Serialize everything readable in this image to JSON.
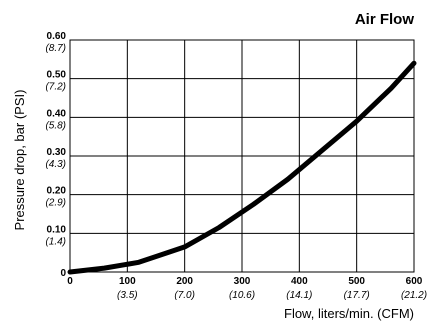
{
  "chart_data": {
    "type": "line",
    "title": "Air Flow",
    "xlabel": "Flow, liters/min. (CFM)",
    "ylabel": "Pressure drop, bar (PSI)",
    "xlim": [
      0,
      600
    ],
    "ylim": [
      0,
      0.6
    ],
    "grid": true,
    "x_ticks": [
      {
        "value": 0,
        "label": "0",
        "sublabel": ""
      },
      {
        "value": 100,
        "label": "100",
        "sublabel": "(3.5)"
      },
      {
        "value": 200,
        "label": "200",
        "sublabel": "(7.0)"
      },
      {
        "value": 300,
        "label": "300",
        "sublabel": "(10.6)"
      },
      {
        "value": 400,
        "label": "400",
        "sublabel": "(14.1)"
      },
      {
        "value": 500,
        "label": "500",
        "sublabel": "(17.7)"
      },
      {
        "value": 600,
        "label": "600",
        "sublabel": "(21.2)"
      }
    ],
    "y_ticks": [
      {
        "value": 0,
        "label": "0",
        "sublabel": ""
      },
      {
        "value": 0.1,
        "label": "0.10",
        "sublabel": "(1.4)"
      },
      {
        "value": 0.2,
        "label": "0.20",
        "sublabel": "(2.9)"
      },
      {
        "value": 0.3,
        "label": "0.30",
        "sublabel": "(4.3)"
      },
      {
        "value": 0.4,
        "label": "0.40",
        "sublabel": "(5.8)"
      },
      {
        "value": 0.5,
        "label": "0.50",
        "sublabel": "(7.2)"
      },
      {
        "value": 0.6,
        "label": "0.60",
        "sublabel": "(8.7)"
      }
    ],
    "series": [
      {
        "x": [
          0,
          60,
          120,
          200,
          260,
          320,
          380,
          440,
          500,
          560,
          600
        ],
        "y": [
          0.0,
          0.01,
          0.025,
          0.065,
          0.115,
          0.175,
          0.24,
          0.315,
          0.39,
          0.475,
          0.54
        ]
      }
    ],
    "line_color": "#000000",
    "grid_color": "#000000"
  }
}
